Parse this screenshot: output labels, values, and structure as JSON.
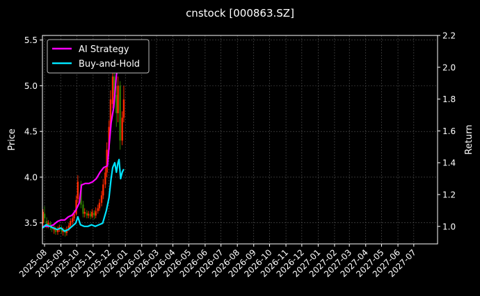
{
  "chart_data": {
    "type": "line",
    "title": "cnstock [000863.SZ]",
    "xlabel": "",
    "ylabel_left": "Price",
    "ylabel_right": "Return",
    "x_ticks": [
      "2025-08",
      "2025-09",
      "2025-10",
      "2025-11",
      "2025-12",
      "2026-01",
      "2026-02",
      "2026-03",
      "2026-04",
      "2026-05",
      "2026-06",
      "2026-07",
      "2026-08",
      "2026-09",
      "2026-10",
      "2026-11",
      "2026-12",
      "2027-01",
      "2027-02",
      "2027-03",
      "2027-04",
      "2027-05",
      "2027-06",
      "2027-07"
    ],
    "x_range": [
      "2025-07-28",
      "2027-08-15"
    ],
    "y_left_ticks": [
      "3.5",
      "4.0",
      "4.5",
      "5.0",
      "5.5"
    ],
    "y_left_range": [
      3.27,
      5.55
    ],
    "y_right_ticks": [
      "1.0",
      "1.2",
      "1.4",
      "1.6",
      "1.8",
      "2.0",
      "2.2"
    ],
    "y_right_range": [
      0.89,
      2.2
    ],
    "grid": true,
    "legend_position": "top-left",
    "colors": {
      "ai_strategy": "#ff00ff",
      "buy_and_hold": "#00e5ff",
      "candle_up": "#ff2a00",
      "candle_down": "#2e7d00",
      "grid": "#555555"
    },
    "series": [
      {
        "name": "AI Strategy",
        "axis": "right",
        "points": [
          [
            "2025-07-28",
            1.0
          ],
          [
            "2025-08-04",
            1.0
          ],
          [
            "2025-08-11",
            1.0
          ],
          [
            "2025-08-18",
            1.01
          ],
          [
            "2025-08-25",
            1.03
          ],
          [
            "2025-09-01",
            1.04
          ],
          [
            "2025-09-08",
            1.04
          ],
          [
            "2025-09-15",
            1.06
          ],
          [
            "2025-09-22",
            1.07
          ],
          [
            "2025-09-29",
            1.1
          ],
          [
            "2025-10-06",
            1.15
          ],
          [
            "2025-10-10",
            1.26
          ],
          [
            "2025-10-17",
            1.27
          ],
          [
            "2025-10-24",
            1.27
          ],
          [
            "2025-10-31",
            1.28
          ],
          [
            "2025-11-07",
            1.3
          ],
          [
            "2025-11-14",
            1.34
          ],
          [
            "2025-11-21",
            1.37
          ],
          [
            "2025-11-28",
            1.38
          ],
          [
            "2025-12-01",
            1.5
          ],
          [
            "2025-12-05",
            1.65
          ],
          [
            "2025-12-10",
            1.75
          ],
          [
            "2025-12-15",
            1.95
          ],
          [
            "2025-12-18",
            2.01
          ],
          [
            "2025-12-21",
            1.97
          ],
          [
            "2025-12-24",
            2.05
          ],
          [
            "2025-12-28",
            2.1
          ]
        ]
      },
      {
        "name": "Buy-and-Hold",
        "axis": "right",
        "points": [
          [
            "2025-07-28",
            0.99
          ],
          [
            "2025-08-04",
            1.01
          ],
          [
            "2025-08-11",
            1.0
          ],
          [
            "2025-08-18",
            0.99
          ],
          [
            "2025-08-25",
            0.98
          ],
          [
            "2025-09-01",
            0.99
          ],
          [
            "2025-09-08",
            0.97
          ],
          [
            "2025-09-15",
            0.98
          ],
          [
            "2025-09-22",
            1.0
          ],
          [
            "2025-09-29",
            1.02
          ],
          [
            "2025-10-03",
            1.06
          ],
          [
            "2025-10-08",
            1.01
          ],
          [
            "2025-10-15",
            1.0
          ],
          [
            "2025-10-22",
            1.0
          ],
          [
            "2025-10-29",
            1.01
          ],
          [
            "2025-11-05",
            1.0
          ],
          [
            "2025-11-12",
            1.01
          ],
          [
            "2025-11-19",
            1.02
          ],
          [
            "2025-11-26",
            1.1
          ],
          [
            "2025-12-01",
            1.18
          ],
          [
            "2025-12-05",
            1.3
          ],
          [
            "2025-12-08",
            1.37
          ],
          [
            "2025-12-12",
            1.4
          ],
          [
            "2025-12-15",
            1.34
          ],
          [
            "2025-12-18",
            1.4
          ],
          [
            "2025-12-20",
            1.42
          ],
          [
            "2025-12-23",
            1.3
          ],
          [
            "2025-12-26",
            1.34
          ],
          [
            "2025-12-29",
            1.36
          ]
        ]
      }
    ],
    "candles": [
      [
        "2025-07-29",
        3.5,
        3.62,
        3.45,
        3.65
      ],
      [
        "2025-08-01",
        3.6,
        3.55,
        3.5,
        3.68
      ],
      [
        "2025-08-05",
        3.52,
        3.48,
        3.44,
        3.56
      ],
      [
        "2025-08-08",
        3.47,
        3.5,
        3.44,
        3.53
      ],
      [
        "2025-08-12",
        3.5,
        3.46,
        3.42,
        3.52
      ],
      [
        "2025-08-15",
        3.45,
        3.43,
        3.4,
        3.48
      ],
      [
        "2025-08-19",
        3.42,
        3.45,
        3.38,
        3.47
      ],
      [
        "2025-08-22",
        3.44,
        3.4,
        3.37,
        3.46
      ],
      [
        "2025-08-26",
        3.4,
        3.43,
        3.37,
        3.46
      ],
      [
        "2025-08-29",
        3.43,
        3.45,
        3.4,
        3.48
      ],
      [
        "2025-09-02",
        3.44,
        3.41,
        3.38,
        3.47
      ],
      [
        "2025-09-05",
        3.4,
        3.42,
        3.36,
        3.45
      ],
      [
        "2025-09-09",
        3.42,
        3.39,
        3.35,
        3.44
      ],
      [
        "2025-09-12",
        3.39,
        3.43,
        3.36,
        3.46
      ],
      [
        "2025-09-16",
        3.43,
        3.47,
        3.41,
        3.5
      ],
      [
        "2025-09-19",
        3.47,
        3.52,
        3.45,
        3.55
      ],
      [
        "2025-09-23",
        3.51,
        3.55,
        3.48,
        3.58
      ],
      [
        "2025-09-26",
        3.55,
        3.6,
        3.52,
        3.64
      ],
      [
        "2025-09-30",
        3.6,
        3.75,
        3.58,
        3.8
      ],
      [
        "2025-10-03",
        3.76,
        3.95,
        3.72,
        4.02
      ],
      [
        "2025-10-09",
        3.92,
        3.7,
        3.66,
        3.96
      ],
      [
        "2025-10-13",
        3.7,
        3.6,
        3.56,
        3.74
      ],
      [
        "2025-10-16",
        3.6,
        3.62,
        3.56,
        3.66
      ],
      [
        "2025-10-20",
        3.61,
        3.58,
        3.55,
        3.64
      ],
      [
        "2025-10-23",
        3.58,
        3.6,
        3.55,
        3.63
      ],
      [
        "2025-10-27",
        3.6,
        3.57,
        3.54,
        3.63
      ],
      [
        "2025-10-30",
        3.57,
        3.62,
        3.55,
        3.65
      ],
      [
        "2025-11-03",
        3.61,
        3.58,
        3.54,
        3.64
      ],
      [
        "2025-11-06",
        3.58,
        3.63,
        3.55,
        3.67
      ],
      [
        "2025-11-10",
        3.63,
        3.66,
        3.6,
        3.7
      ],
      [
        "2025-11-13",
        3.66,
        3.72,
        3.63,
        3.76
      ],
      [
        "2025-11-17",
        3.72,
        3.8,
        3.68,
        3.85
      ],
      [
        "2025-11-20",
        3.8,
        3.92,
        3.76,
        3.98
      ],
      [
        "2025-11-24",
        3.92,
        4.05,
        3.88,
        4.1
      ],
      [
        "2025-11-27",
        4.05,
        4.3,
        4.0,
        4.38
      ],
      [
        "2025-12-01",
        4.3,
        4.55,
        4.25,
        4.62
      ],
      [
        "2025-12-04",
        4.55,
        4.85,
        4.5,
        4.95
      ],
      [
        "2025-12-08",
        4.8,
        5.1,
        4.75,
        5.2
      ],
      [
        "2025-12-11",
        5.1,
        4.9,
        4.82,
        5.25
      ],
      [
        "2025-12-15",
        4.9,
        4.7,
        4.55,
        5.0
      ],
      [
        "2025-12-18",
        4.7,
        5.0,
        4.6,
        5.1
      ],
      [
        "2025-12-22",
        5.0,
        4.4,
        4.3,
        5.05
      ],
      [
        "2025-12-26",
        4.4,
        4.65,
        4.35,
        4.72
      ],
      [
        "2025-12-29",
        4.65,
        4.85,
        4.6,
        5.0
      ]
    ]
  }
}
